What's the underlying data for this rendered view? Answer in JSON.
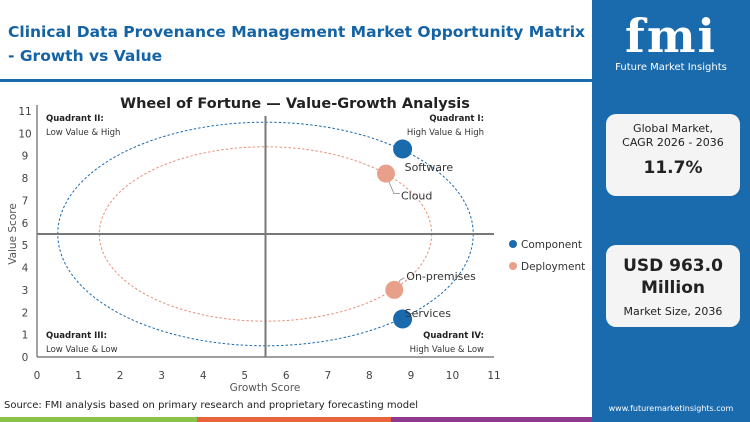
{
  "header": {
    "title": "Clinical Data Provenance Management Market Opportunity Matrix - Growth vs Value"
  },
  "sidebar": {
    "logo_text": "fmi",
    "logo_subtext": "Future Market Insights",
    "cagr_label_1": "Global Market,",
    "cagr_label_2": "CAGR 2026 - 2036",
    "cagr_value": "11.7%",
    "size_value_1": "USD 963.0",
    "size_value_2": "Million",
    "size_label": "Market Size, 2036",
    "url": "www.futuremarketinsights.com"
  },
  "footer": {
    "source": "Source: FMI analysis based on primary research and proprietary forecasting model",
    "stripe_colors": [
      "#8bc34a",
      "#e8643c",
      "#8e3a8e"
    ]
  },
  "chart_data": {
    "type": "scatter",
    "title": "Wheel of Fortune — Value-Growth Analysis",
    "xlabel": "Growth Score",
    "ylabel": "Value Score",
    "xlim": [
      0,
      11
    ],
    "ylim": [
      0,
      11
    ],
    "xticks": [
      "0",
      "1",
      "2",
      "3",
      "4",
      "5",
      "6",
      "7",
      "8",
      "9",
      "10",
      "11"
    ],
    "yticks": [
      "0",
      "1",
      "2",
      "3",
      "4",
      "5",
      "6",
      "7",
      "8",
      "9",
      "10",
      "11"
    ],
    "grid": false,
    "legend_position": "right",
    "quadrant_divider": {
      "x": 5.5,
      "y": 5.5
    },
    "quadrants": [
      {
        "title": "Quadrant II:",
        "label": "Low Value & High"
      },
      {
        "title": "Quadrant I:",
        "label": "High Value & High"
      },
      {
        "title": "Quadrant III:",
        "label": "Low Value & Low"
      },
      {
        "title": "Quadrant IV:",
        "label": "High Value & Low"
      }
    ],
    "rings": [
      {
        "series": "Component",
        "cx": 5.5,
        "cy": 5.5,
        "rx": 5,
        "ry": 5,
        "color": "#1a6aae"
      },
      {
        "series": "Deployment",
        "cx": 5.5,
        "cy": 5.5,
        "rx": 4,
        "ry": 3.9,
        "color": "#e8907a"
      }
    ],
    "series": [
      {
        "name": "Component",
        "color": "#1a6aae",
        "points": [
          {
            "label": "Software",
            "x": 8.8,
            "y": 9.3
          },
          {
            "label": "Services",
            "x": 8.8,
            "y": 1.7
          }
        ]
      },
      {
        "name": "Deployment",
        "color": "#e8a08a",
        "points": [
          {
            "label": "Cloud",
            "x": 8.4,
            "y": 8.2
          },
          {
            "label": "On-premises",
            "x": 8.6,
            "y": 3.0
          }
        ]
      }
    ]
  }
}
